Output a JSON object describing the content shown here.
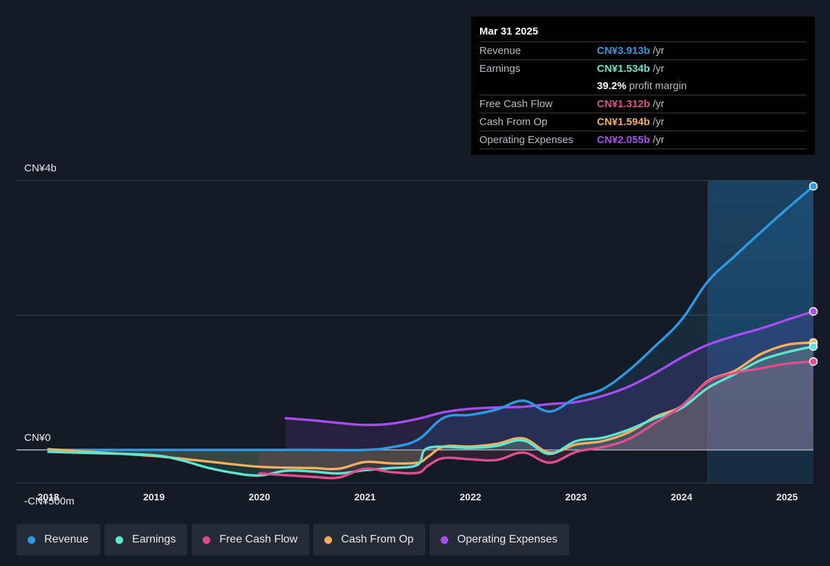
{
  "tooltip": {
    "date": "Mar 31 2025",
    "rows": [
      {
        "label": "Revenue",
        "value": "CN¥3.913b",
        "unit": "/yr",
        "color": "#2d9ae6"
      },
      {
        "label": "Earnings",
        "value": "CN¥1.534b",
        "unit": "/yr",
        "color": "#5fe6d1"
      },
      {
        "label": "",
        "value": "39.2%",
        "unit": "profit margin",
        "color": "#ffffff"
      },
      {
        "label": "Free Cash Flow",
        "value": "CN¥1.312b",
        "unit": "/yr",
        "color": "#e04f8c"
      },
      {
        "label": "Cash From Op",
        "value": "CN¥1.594b",
        "unit": "/yr",
        "color": "#f0b060"
      },
      {
        "label": "Operating Expenses",
        "value": "CN¥2.055b",
        "unit": "/yr",
        "color": "#a64df0"
      }
    ]
  },
  "legend": [
    {
      "label": "Revenue",
      "color": "#2d9ae6"
    },
    {
      "label": "Earnings",
      "color": "#5fe6d1"
    },
    {
      "label": "Free Cash Flow",
      "color": "#e04f8c"
    },
    {
      "label": "Cash From Op",
      "color": "#f0b060"
    },
    {
      "label": "Operating Expenses",
      "color": "#a64df0"
    }
  ],
  "chart_data": {
    "type": "line",
    "y_axis_labels": [
      "CN¥4b",
      "CN¥0",
      "-CN¥500m"
    ],
    "ylim": [
      -500,
      4000
    ],
    "y_units": "CN¥ millions",
    "x_tick_labels": [
      "2018",
      "2019",
      "2020",
      "2021",
      "2022",
      "2023",
      "2024",
      "2025"
    ],
    "xlim": [
      2018,
      2025.25
    ],
    "forecast_start": 2024.25,
    "series": [
      {
        "name": "Revenue",
        "color": "#2d9ae6",
        "points": [
          [
            2018,
            0
          ],
          [
            2018.5,
            0
          ],
          [
            2019,
            0
          ],
          [
            2019.5,
            0
          ],
          [
            2020,
            0
          ],
          [
            2020.5,
            0
          ],
          [
            2021,
            0
          ],
          [
            2021.25,
            40
          ],
          [
            2021.5,
            150
          ],
          [
            2021.75,
            480
          ],
          [
            2022,
            520
          ],
          [
            2022.25,
            600
          ],
          [
            2022.5,
            730
          ],
          [
            2022.75,
            570
          ],
          [
            2023,
            770
          ],
          [
            2023.25,
            900
          ],
          [
            2023.5,
            1180
          ],
          [
            2023.75,
            1540
          ],
          [
            2024,
            1930
          ],
          [
            2024.25,
            2500
          ],
          [
            2024.5,
            2870
          ],
          [
            2024.75,
            3230
          ],
          [
            2025,
            3580
          ],
          [
            2025.25,
            3913
          ]
        ]
      },
      {
        "name": "Earnings",
        "color": "#5fe6d1",
        "points": [
          [
            2018,
            -30
          ],
          [
            2018.5,
            -50
          ],
          [
            2019,
            -80
          ],
          [
            2019.25,
            -150
          ],
          [
            2019.5,
            -260
          ],
          [
            2019.75,
            -340
          ],
          [
            2020,
            -380
          ],
          [
            2020.25,
            -310
          ],
          [
            2020.5,
            -320
          ],
          [
            2020.75,
            -350
          ],
          [
            2021,
            -300
          ],
          [
            2021.25,
            -270
          ],
          [
            2021.5,
            -220
          ],
          [
            2021.6,
            30
          ],
          [
            2022,
            30
          ],
          [
            2022.25,
            60
          ],
          [
            2022.5,
            140
          ],
          [
            2022.75,
            -60
          ],
          [
            2023,
            130
          ],
          [
            2023.25,
            180
          ],
          [
            2023.5,
            300
          ],
          [
            2023.75,
            470
          ],
          [
            2024,
            620
          ],
          [
            2024.25,
            920
          ],
          [
            2024.5,
            1120
          ],
          [
            2024.75,
            1330
          ],
          [
            2025,
            1450
          ],
          [
            2025.25,
            1534
          ]
        ]
      },
      {
        "name": "Free Cash Flow",
        "color": "#e04f8c",
        "points": [
          [
            2020,
            -350
          ],
          [
            2020.5,
            -400
          ],
          [
            2020.75,
            -410
          ],
          [
            2021,
            -280
          ],
          [
            2021.25,
            -330
          ],
          [
            2021.5,
            -340
          ],
          [
            2021.6,
            -230
          ],
          [
            2021.75,
            -120
          ],
          [
            2022,
            -140
          ],
          [
            2022.25,
            -150
          ],
          [
            2022.5,
            -40
          ],
          [
            2022.75,
            -190
          ],
          [
            2023,
            -30
          ],
          [
            2023.25,
            40
          ],
          [
            2023.5,
            160
          ],
          [
            2023.75,
            400
          ],
          [
            2024,
            650
          ],
          [
            2024.25,
            1010
          ],
          [
            2024.5,
            1140
          ],
          [
            2024.75,
            1210
          ],
          [
            2025,
            1280
          ],
          [
            2025.25,
            1312
          ]
        ]
      },
      {
        "name": "Cash From Op",
        "color": "#f0b060",
        "points": [
          [
            2018,
            10
          ],
          [
            2018.5,
            -40
          ],
          [
            2019,
            -90
          ],
          [
            2019.5,
            -170
          ],
          [
            2020,
            -250
          ],
          [
            2020.5,
            -270
          ],
          [
            2020.75,
            -280
          ],
          [
            2021,
            -180
          ],
          [
            2021.25,
            -200
          ],
          [
            2021.5,
            -190
          ],
          [
            2021.6,
            -100
          ],
          [
            2021.75,
            50
          ],
          [
            2022,
            50
          ],
          [
            2022.25,
            90
          ],
          [
            2022.5,
            170
          ],
          [
            2022.75,
            -40
          ],
          [
            2023,
            80
          ],
          [
            2023.25,
            130
          ],
          [
            2023.5,
            260
          ],
          [
            2023.75,
            490
          ],
          [
            2024,
            650
          ],
          [
            2024.25,
            1020
          ],
          [
            2024.5,
            1170
          ],
          [
            2024.75,
            1420
          ],
          [
            2025,
            1560
          ],
          [
            2025.25,
            1594
          ]
        ]
      },
      {
        "name": "Operating Expenses",
        "color": "#a64df0",
        "points": [
          [
            2020.25,
            470
          ],
          [
            2020.5,
            440
          ],
          [
            2020.75,
            400
          ],
          [
            2021,
            370
          ],
          [
            2021.25,
            390
          ],
          [
            2021.5,
            460
          ],
          [
            2021.75,
            560
          ],
          [
            2022,
            610
          ],
          [
            2022.25,
            630
          ],
          [
            2022.5,
            640
          ],
          [
            2022.75,
            680
          ],
          [
            2023,
            710
          ],
          [
            2023.25,
            800
          ],
          [
            2023.5,
            940
          ],
          [
            2023.75,
            1140
          ],
          [
            2024,
            1370
          ],
          [
            2024.25,
            1560
          ],
          [
            2024.5,
            1690
          ],
          [
            2024.75,
            1800
          ],
          [
            2025,
            1930
          ],
          [
            2025.25,
            2055
          ]
        ]
      }
    ]
  }
}
